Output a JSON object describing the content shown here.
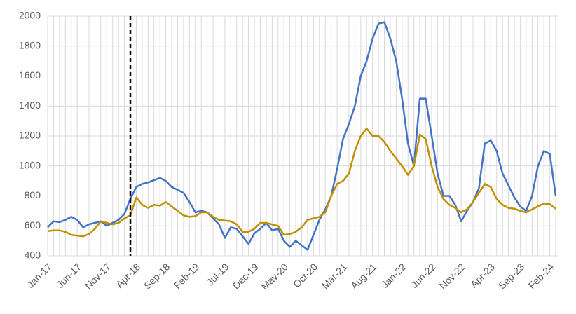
{
  "chart_data": {
    "type": "line",
    "categories": [
      "Jan-17",
      null,
      null,
      null,
      null,
      "Jun-17",
      null,
      null,
      null,
      null,
      "Nov-17",
      null,
      null,
      null,
      null,
      "Apr-18",
      null,
      null,
      null,
      null,
      "Sep-18",
      null,
      null,
      null,
      null,
      "Feb-19",
      null,
      null,
      null,
      null,
      "Jul-19",
      null,
      null,
      null,
      null,
      "Dec-19",
      null,
      null,
      null,
      null,
      "May-20",
      null,
      null,
      null,
      null,
      "Oct-20",
      null,
      null,
      null,
      null,
      "Mar-21",
      null,
      null,
      null,
      null,
      "Aug-21",
      null,
      null,
      null,
      null,
      "Jan-22",
      null,
      null,
      null,
      null,
      "Jun-22",
      null,
      null,
      null,
      null,
      "Nov-22",
      null,
      null,
      null,
      null,
      "Apr-23",
      null,
      null,
      null,
      null,
      "Sep-23",
      null,
      null,
      null,
      null,
      "Feb-24",
      null
    ],
    "series": [
      {
        "color": "#4472c4",
        "values": [
          590,
          630,
          625,
          640,
          660,
          640,
          590,
          610,
          620,
          630,
          600,
          620,
          640,
          680,
          780,
          860,
          880,
          890,
          905,
          920,
          900,
          860,
          840,
          820,
          760,
          690,
          700,
          690,
          650,
          610,
          520,
          590,
          580,
          530,
          480,
          550,
          580,
          620,
          570,
          580,
          500,
          460,
          500,
          470,
          440,
          540,
          640,
          710,
          800,
          980,
          1180,
          1280,
          1400,
          1600,
          1700,
          1850,
          1950,
          1960,
          1850,
          1700,
          1450,
          1150,
          1000,
          1450,
          1450,
          1200,
          950,
          800,
          800,
          740,
          630,
          700,
          760,
          850,
          1150,
          1170,
          1100,
          950,
          870,
          790,
          730,
          700,
          800,
          1000,
          1100,
          1080,
          800
        ]
      },
      {
        "color": "#bf9000",
        "values": [
          565,
          570,
          570,
          560,
          540,
          535,
          530,
          545,
          580,
          630,
          620,
          610,
          620,
          650,
          670,
          790,
          740,
          720,
          740,
          735,
          760,
          730,
          700,
          670,
          660,
          665,
          690,
          690,
          660,
          640,
          635,
          630,
          610,
          560,
          560,
          580,
          620,
          620,
          610,
          600,
          540,
          545,
          560,
          590,
          640,
          650,
          660,
          690,
          800,
          880,
          900,
          950,
          1100,
          1200,
          1250,
          1200,
          1200,
          1160,
          1100,
          1050,
          1000,
          940,
          1000,
          1210,
          1180,
          1000,
          860,
          780,
          740,
          720,
          690,
          710,
          760,
          820,
          880,
          860,
          780,
          740,
          720,
          715,
          700,
          690,
          710,
          730,
          750,
          745,
          715
        ]
      }
    ],
    "ylim": [
      400,
      2000
    ],
    "yticks": [
      400,
      600,
      800,
      1000,
      1200,
      1400,
      1600,
      1800,
      2000
    ],
    "grid": true,
    "vline_index": 14
  }
}
